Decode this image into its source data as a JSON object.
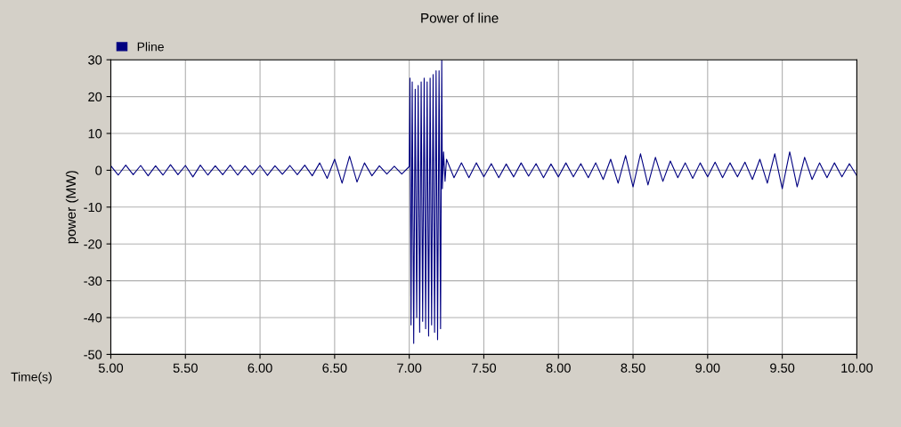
{
  "chart_data": {
    "type": "line",
    "title": "Power of line",
    "xlabel": "Time(s)",
    "ylabel": "power (MW)",
    "xlim": [
      5.0,
      10.0
    ],
    "ylim": [
      -50,
      30
    ],
    "xticks": [
      {
        "value": 5.0,
        "label": "5.00"
      },
      {
        "value": 5.5,
        "label": "5.50"
      },
      {
        "value": 6.0,
        "label": "6.00"
      },
      {
        "value": 6.5,
        "label": "6.50"
      },
      {
        "value": 7.0,
        "label": "7.00"
      },
      {
        "value": 7.5,
        "label": "7.50"
      },
      {
        "value": 8.0,
        "label": "8.00"
      },
      {
        "value": 8.5,
        "label": "8.50"
      },
      {
        "value": 9.0,
        "label": "9.00"
      },
      {
        "value": 9.5,
        "label": "9.50"
      },
      {
        "value": 10.0,
        "label": "10.00"
      }
    ],
    "yticks": [
      -50,
      -40,
      -30,
      -20,
      -10,
      0,
      10,
      20,
      30
    ],
    "grid": true,
    "legend": "top left",
    "marker": "none",
    "line_style": "solid",
    "series": [
      {
        "name": "Pline",
        "color": "#000080",
        "x": [
          5.0,
          5.05,
          5.1,
          5.15,
          5.2,
          5.25,
          5.3,
          5.35,
          5.4,
          5.45,
          5.5,
          5.55,
          5.6,
          5.65,
          5.7,
          5.75,
          5.8,
          5.85,
          5.9,
          5.95,
          6.0,
          6.05,
          6.1,
          6.15,
          6.2,
          6.25,
          6.3,
          6.35,
          6.4,
          6.45,
          6.5,
          6.55,
          6.6,
          6.65,
          6.7,
          6.75,
          6.8,
          6.85,
          6.9,
          6.95,
          7.0,
          7.005,
          7.012,
          7.02,
          7.03,
          7.04,
          7.05,
          7.06,
          7.07,
          7.08,
          7.09,
          7.1,
          7.11,
          7.12,
          7.13,
          7.14,
          7.15,
          7.16,
          7.17,
          7.18,
          7.19,
          7.2,
          7.21,
          7.218,
          7.222,
          7.23,
          7.24,
          7.25,
          7.3,
          7.35,
          7.4,
          7.45,
          7.5,
          7.55,
          7.6,
          7.65,
          7.7,
          7.75,
          7.8,
          7.85,
          7.9,
          7.95,
          8.0,
          8.05,
          8.1,
          8.15,
          8.2,
          8.25,
          8.3,
          8.35,
          8.4,
          8.45,
          8.5,
          8.55,
          8.6,
          8.65,
          8.7,
          8.75,
          8.8,
          8.85,
          8.9,
          8.95,
          9.0,
          9.05,
          9.1,
          9.15,
          9.2,
          9.25,
          9.3,
          9.35,
          9.4,
          9.45,
          9.5,
          9.55,
          9.6,
          9.65,
          9.7,
          9.75,
          9.8,
          9.85,
          9.9,
          9.95,
          10.0
        ],
        "values": [
          1.2,
          -1.3,
          1.4,
          -1.2,
          1.3,
          -1.5,
          1.2,
          -1.3,
          1.5,
          -1.2,
          1.3,
          -1.8,
          1.4,
          -1.3,
          1.2,
          -1.2,
          1.4,
          -1.3,
          1.2,
          -1.2,
          1.3,
          -1.4,
          1.2,
          -1.1,
          1.3,
          -1.2,
          1.4,
          -1.5,
          2.0,
          -2.2,
          3.0,
          -3.5,
          3.8,
          -3.2,
          2.0,
          -1.5,
          1.2,
          -1.0,
          1.1,
          -1.0,
          1.0,
          25,
          -42,
          24,
          -47,
          22,
          -40,
          23,
          -44,
          24,
          -41,
          25,
          -43,
          24,
          -45,
          25,
          -42,
          26,
          -44,
          27,
          -46,
          27,
          -43,
          30,
          -5,
          5,
          -3,
          3,
          -2,
          2,
          -2,
          2,
          -1.8,
          1.8,
          -2,
          1.7,
          -1.8,
          2,
          -1.6,
          1.8,
          -2,
          1.7,
          -1.8,
          2,
          -1.8,
          1.8,
          -2,
          2,
          -2.5,
          3,
          -3.5,
          4,
          -4.5,
          4.5,
          -4,
          3.5,
          -3,
          2.5,
          -2,
          2,
          -2.2,
          2,
          -1.8,
          2.2,
          -2,
          2,
          -1.8,
          2.2,
          -2.5,
          3,
          -3.5,
          4.5,
          -5,
          5,
          -4.5,
          3.5,
          -2.5,
          2,
          -2,
          2,
          -1.8,
          1.8,
          -1.5
        ]
      }
    ]
  }
}
